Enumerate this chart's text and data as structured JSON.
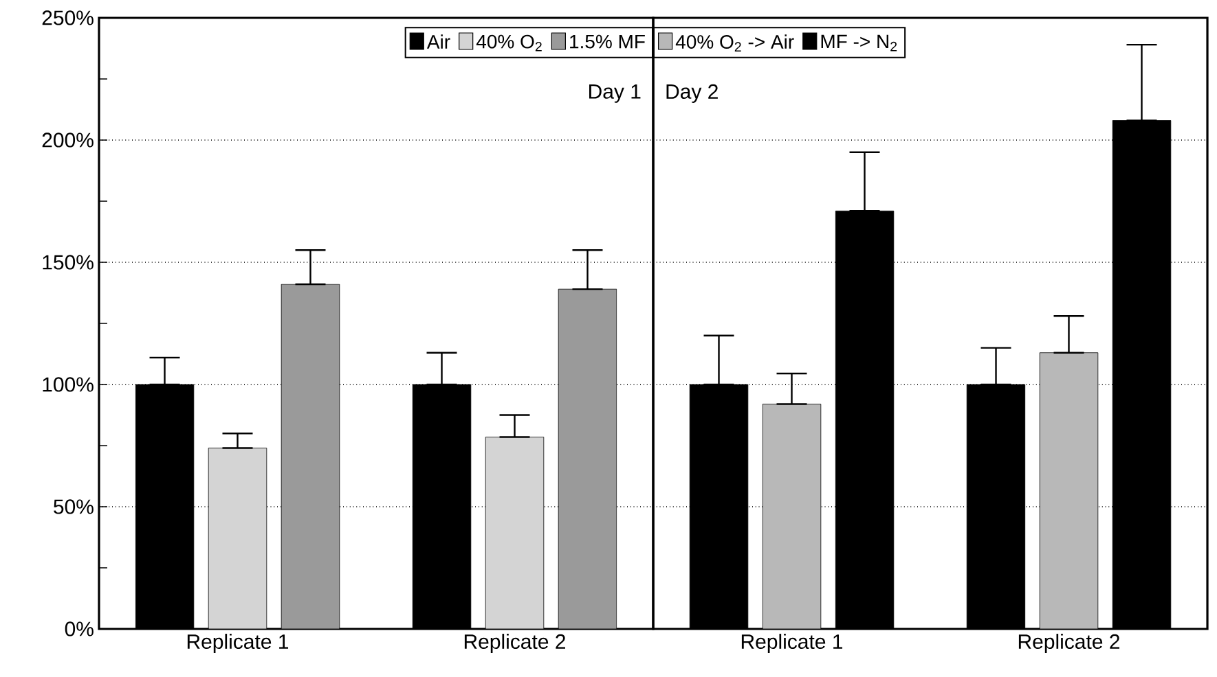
{
  "chart_data": [
    {
      "type": "bar",
      "categories": [
        "Replicate 1",
        "Replicate 2"
      ],
      "series": [
        {
          "name": "Air",
          "color": "#000000",
          "values": [
            100,
            100
          ],
          "errors": [
            [
              100,
              111
            ],
            [
              100,
              113
            ]
          ]
        },
        {
          "name": "40% O$_{2}$",
          "color": "#d4d4d4",
          "values": [
            74,
            78.5
          ],
          "errors": [
            [
              74,
              80
            ],
            [
              78.5,
              87.5
            ]
          ]
        },
        {
          "name": "1.5% MF",
          "color": "#9a9a9a",
          "values": [
            141,
            139
          ],
          "errors": [
            [
              141,
              155
            ],
            [
              139,
              155
            ]
          ]
        }
      ],
      "ylim": [
        0,
        250
      ],
      "yticks": [
        {
          "value": 0,
          "label": "0%"
        },
        {
          "value": 50,
          "label": "50%"
        },
        {
          "value": 100,
          "label": "100%"
        },
        {
          "value": 150,
          "label": "150%"
        },
        {
          "value": 200,
          "label": "200%"
        },
        {
          "value": 250,
          "label": "250%"
        }
      ],
      "grid": "y",
      "legend": "top right",
      "annotations": [
        "Day 1"
      ]
    },
    {
      "type": "bar",
      "categories": [
        "Replicate 1",
        "Replicate 2"
      ],
      "series": [
        {
          "color": "#000000",
          "values": [
            100,
            100
          ],
          "errors": [
            [
              100,
              120
            ],
            [
              100,
              115
            ]
          ]
        },
        {
          "name": "40% O$_{2}$ -> Air",
          "color": "#b8b8b8",
          "values": [
            92,
            113
          ],
          "errors": [
            [
              92,
              104.5
            ],
            [
              113,
              128
            ]
          ]
        },
        {
          "name": "MF -> N$_{2}$",
          "color": "#000000",
          "values": [
            171,
            208
          ],
          "errors": [
            [
              171,
              195
            ],
            [
              208,
              239
            ]
          ]
        }
      ],
      "ylim": [
        0,
        250
      ],
      "yticks": [
        0,
        50,
        100,
        150,
        200,
        250
      ],
      "grid": "y",
      "legend": "top left",
      "tick_labels": "x",
      "annotations": [
        "Day 2"
      ]
    }
  ]
}
